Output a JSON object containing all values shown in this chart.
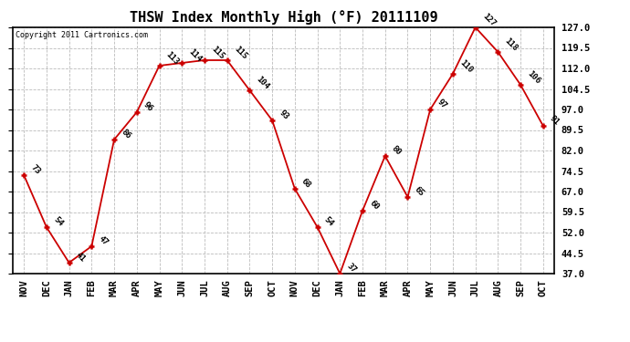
{
  "title": "THSW Index Monthly High (°F) 20111109",
  "copyright": "Copyright 2011 Cartronics.com",
  "months": [
    "NOV",
    "DEC",
    "JAN",
    "FEB",
    "MAR",
    "APR",
    "MAY",
    "JUN",
    "JUL",
    "AUG",
    "SEP",
    "OCT",
    "NOV",
    "DEC",
    "JAN",
    "FEB",
    "MAR",
    "APR",
    "MAY",
    "JUN",
    "JUL",
    "AUG",
    "SEP",
    "OCT"
  ],
  "values": [
    73,
    54,
    41,
    47,
    86,
    96,
    113,
    114,
    115,
    115,
    104,
    93,
    68,
    54,
    37,
    60,
    80,
    65,
    97,
    110,
    127,
    118,
    106,
    91
  ],
  "ylim": [
    37.0,
    127.0
  ],
  "yticks": [
    37.0,
    44.5,
    52.0,
    59.5,
    67.0,
    74.5,
    82.0,
    89.5,
    97.0,
    104.5,
    112.0,
    119.5,
    127.0
  ],
  "line_color": "#cc0000",
  "background_color": "#ffffff",
  "grid_color": "#bbbbbb",
  "title_fontsize": 11,
  "tick_fontsize": 7.5
}
